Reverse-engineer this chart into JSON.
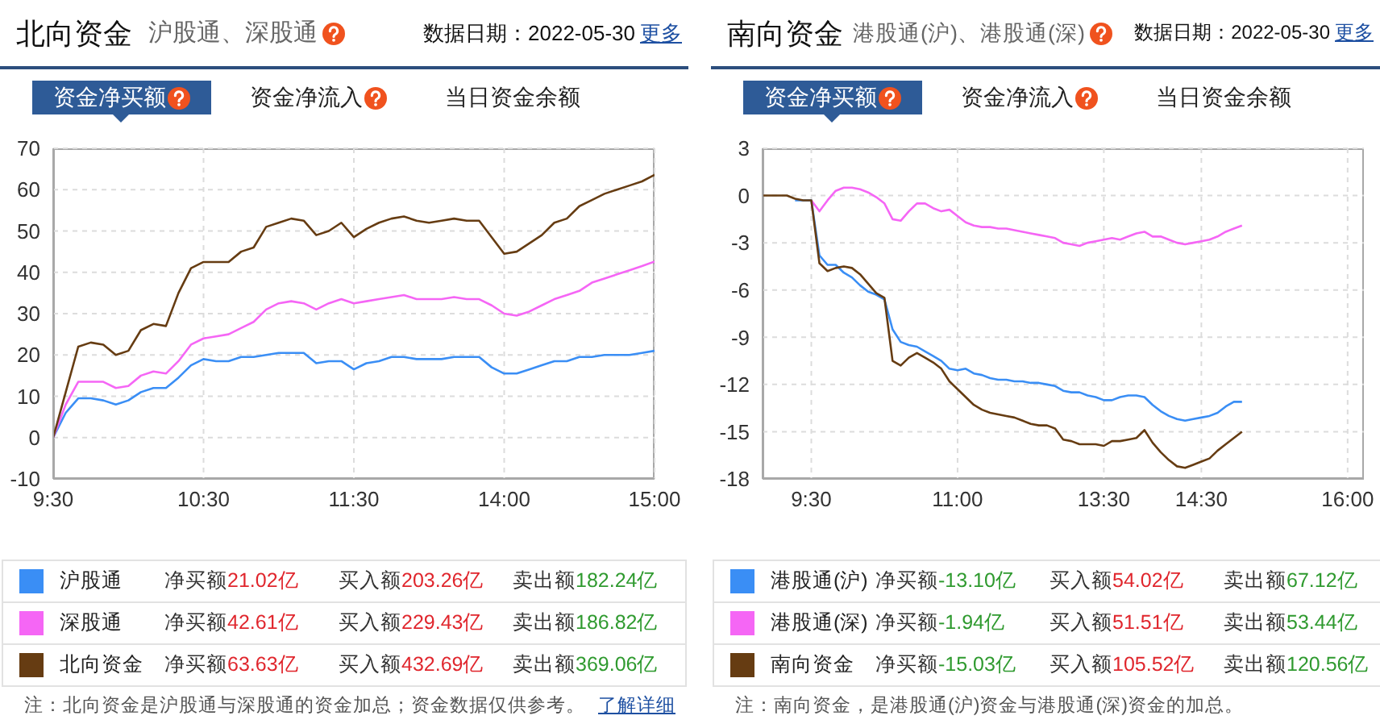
{
  "chart_data": [
    {
      "type": "line",
      "title": "北向资金",
      "subtitle": "沪股通、深股通",
      "categories": [
        "9:30",
        null,
        null,
        null,
        null,
        null,
        null,
        null,
        null,
        null,
        null,
        null,
        "10:30",
        null,
        null,
        null,
        null,
        null,
        null,
        null,
        null,
        null,
        null,
        null,
        "11:30",
        null,
        null,
        null,
        null,
        null,
        null,
        null,
        null,
        null,
        null,
        null,
        "14:00",
        null,
        null,
        null,
        null,
        null,
        null,
        null,
        null,
        null,
        null,
        null,
        "15:00"
      ],
      "series": [
        {
          "name": "沪股通",
          "color": "#3a8ef5",
          "values": [
            0,
            6,
            9.5,
            9.5,
            9,
            8,
            9,
            11,
            12,
            12,
            14.5,
            17.5,
            19,
            18.5,
            18.5,
            19.5,
            19.5,
            20,
            20.5,
            20.5,
            20.5,
            18,
            18.5,
            18.5,
            16.5,
            18,
            18.5,
            19.5,
            19.5,
            19,
            19,
            19,
            19.5,
            19.5,
            19.5,
            17,
            15.5,
            15.5,
            16.5,
            17.5,
            18.5,
            18.5,
            19.5,
            19.5,
            20,
            20,
            20,
            20.5,
            21
          ]
        },
        {
          "name": "深股通",
          "color": "#f566f5",
          "values": [
            0,
            8,
            13.5,
            13.5,
            13.5,
            12,
            12.5,
            15,
            16,
            15.5,
            18.5,
            22.5,
            24,
            24.5,
            25,
            26.5,
            28,
            31,
            32.5,
            33,
            32.5,
            31,
            32.5,
            33.5,
            32.5,
            33,
            33.5,
            34,
            34.5,
            33.5,
            33.5,
            33.5,
            34,
            33.5,
            33.5,
            32,
            30,
            29.5,
            30.5,
            32,
            33.5,
            34.5,
            35.5,
            37.5,
            38.5,
            39.5,
            40.5,
            41.5,
            42.6
          ]
        },
        {
          "name": "北向资金",
          "color": "#663c12",
          "values": [
            0,
            11,
            22,
            23,
            22.5,
            20,
            21,
            26,
            27.5,
            27,
            35,
            41,
            42.5,
            42.5,
            42.5,
            45,
            46,
            51,
            52,
            53,
            52.5,
            49,
            50,
            52,
            48.5,
            50.5,
            52,
            53,
            53.5,
            52.5,
            52,
            52.5,
            53,
            52.5,
            52.5,
            48.5,
            44.5,
            45,
            47,
            49,
            52,
            53,
            56,
            57.5,
            59,
            60,
            61,
            62,
            63.6
          ]
        }
      ],
      "ylim": [
        -10,
        70
      ],
      "yticks": [
        -10,
        0,
        10,
        20,
        30,
        40,
        50,
        60,
        70
      ],
      "grid": true,
      "legend": "bottom",
      "annotations": [
        "数据日期：2022-05-30",
        "更多",
        "资金净买额",
        "资金净流入",
        "当日资金余额",
        "净买额21.02亿",
        "买入额203.26亿",
        "卖出额182.24亿",
        "净买额42.61亿",
        "买入额229.43亿",
        "卖出额186.82亿",
        "净买额63.63亿",
        "买入额432.69亿",
        "卖出额369.06亿",
        "注：北向资金是沪股通与深股通的资金加总；资金数据仅供参考。",
        "了解详细"
      ]
    },
    {
      "type": "line",
      "title": "南向资金",
      "subtitle": "港股通(沪)、港股通(深)",
      "categories": [
        null,
        null,
        null,
        null,
        null,
        null,
        "9:30",
        null,
        null,
        null,
        null,
        null,
        null,
        null,
        null,
        null,
        null,
        null,
        null,
        null,
        null,
        null,
        null,
        null,
        "11:00",
        null,
        null,
        null,
        null,
        null,
        null,
        null,
        null,
        null,
        null,
        null,
        null,
        null,
        null,
        null,
        null,
        null,
        "13:30",
        null,
        null,
        null,
        null,
        null,
        null,
        null,
        null,
        null,
        null,
        null,
        "14:30",
        null,
        null,
        null,
        null,
        null,
        null,
        null,
        null,
        null,
        null,
        null,
        null,
        null,
        null,
        null,
        null,
        null,
        "16:00",
        null,
        null
      ],
      "series": [
        {
          "name": "港股通(沪)",
          "color": "#3a8ef5",
          "values": [
            null,
            null,
            null,
            null,
            -0.3,
            -0.3,
            -0.3,
            -3.8,
            -4.4,
            -4.4,
            -4.9,
            -5.2,
            -5.7,
            -6.1,
            -6.3,
            -6.6,
            -8.5,
            -9.3,
            -9.5,
            -9.6,
            -9.9,
            -10.2,
            -10.5,
            -11,
            -11.1,
            -11,
            -11.3,
            -11.4,
            -11.6,
            -11.7,
            -11.7,
            -11.8,
            -11.8,
            -11.9,
            -11.9,
            -12,
            -12.1,
            -12.4,
            -12.5,
            -12.5,
            -12.7,
            -12.8,
            -13,
            -13,
            -12.8,
            -12.7,
            -12.7,
            -12.8,
            -13.3,
            -13.7,
            -14,
            -14.2,
            -14.3,
            -14.2,
            -14.1,
            -14,
            -13.8,
            -13.4,
            -13.1,
            -13.1,
            null,
            null,
            null,
            null,
            null,
            null,
            null,
            null,
            null,
            null,
            null,
            null,
            null,
            null,
            null
          ]
        },
        {
          "name": "港股通(深)",
          "color": "#f566f5",
          "values": [
            null,
            null,
            null,
            null,
            null,
            null,
            -0.3,
            -1,
            -0.3,
            0.3,
            0.5,
            0.5,
            0.4,
            0.2,
            -0.1,
            -0.5,
            -1.5,
            -1.6,
            -1,
            -0.5,
            -0.5,
            -0.8,
            -1,
            -0.9,
            -1.3,
            -1.7,
            -1.9,
            -2,
            -2,
            -2.1,
            -2.1,
            -2.2,
            -2.3,
            -2.4,
            -2.5,
            -2.6,
            -2.7,
            -3,
            -3.1,
            -3.2,
            -3,
            -2.9,
            -2.8,
            -2.7,
            -2.8,
            -2.6,
            -2.4,
            -2.3,
            -2.6,
            -2.6,
            -2.8,
            -3,
            -3.1,
            -3,
            -2.9,
            -2.8,
            -2.6,
            -2.3,
            -2.1,
            -1.9,
            null,
            null,
            null,
            null,
            null,
            null,
            null,
            null,
            null,
            null,
            null,
            null,
            null,
            null,
            null
          ]
        },
        {
          "name": "南向资金",
          "color": "#663c12",
          "values": [
            0,
            0,
            0,
            0,
            -0.2,
            -0.3,
            -0.3,
            -4.3,
            -4.8,
            -4.6,
            -4.5,
            -4.6,
            -5,
            -5.6,
            -6.2,
            -6.5,
            -10.5,
            -10.8,
            -10.3,
            -10,
            -10.3,
            -10.6,
            -11,
            -11.8,
            -12.3,
            -12.8,
            -13.3,
            -13.6,
            -13.8,
            -13.9,
            -14,
            -14.1,
            -14.3,
            -14.5,
            -14.6,
            -14.6,
            -14.8,
            -15.5,
            -15.6,
            -15.8,
            -15.8,
            -15.8,
            -15.9,
            -15.6,
            -15.6,
            -15.5,
            -15.4,
            -14.9,
            -15.7,
            -16.3,
            -16.8,
            -17.2,
            -17.3,
            -17.1,
            -16.9,
            -16.7,
            -16.2,
            -15.8,
            -15.4,
            -15,
            null,
            null,
            null,
            null,
            null,
            null,
            null,
            null,
            null,
            null,
            null,
            null,
            null,
            null,
            null
          ]
        }
      ],
      "ylim": [
        -18,
        3
      ],
      "yticks": [
        -18,
        -15,
        -12,
        -9,
        -6,
        -3,
        0,
        3
      ],
      "grid": true,
      "legend": "bottom",
      "annotations": [
        "数据日期：2022-05-30",
        "更多",
        "资金净买额",
        "资金净流入",
        "当日资金余额",
        "净买额-13.10亿",
        "买入额54.02亿",
        "卖出额67.12亿",
        "净买额-1.94亿",
        "买入额51.51亿",
        "卖出额53.44亿",
        "净买额-15.03亿",
        "买入额105.52亿",
        "卖出额120.56亿",
        "注：南向资金，是港股通(沪)资金与港股通(深)资金的加总。"
      ]
    }
  ]
}
